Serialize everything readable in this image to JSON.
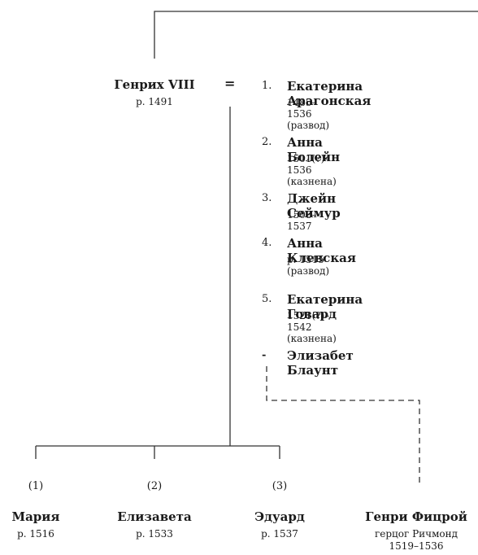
{
  "king": {
    "name": "Генрих VIII",
    "born": "р. 1491",
    "marriage_sign": "="
  },
  "wives": [
    {
      "marker": "1.",
      "name": "Екатерина Арагонская",
      "dates": "1485–1536",
      "note": "(развод)"
    },
    {
      "marker": "2.",
      "name": "Анна Болейн",
      "dates": "1501(?)–1536",
      "note": "(казнена)"
    },
    {
      "marker": "3.",
      "name": "Джейн Сеймур",
      "dates": "1508–1537",
      "note": ""
    },
    {
      "marker": "4.",
      "name": "Анна Клевская",
      "dates": "р. 1515",
      "note": "(развод)"
    },
    {
      "marker": "5.",
      "name": "Екатерина Говард",
      "dates": "1521(?)–1542",
      "note": "(казнена)"
    }
  ],
  "mistress": {
    "marker": "-",
    "name": "Элизабет Блаунт"
  },
  "children": [
    {
      "mother_ref": "(1)",
      "name": "Мария",
      "born": "р. 1516"
    },
    {
      "mother_ref": "(2)",
      "name": "Елизавета",
      "born": "р. 1533"
    },
    {
      "mother_ref": "(3)",
      "name": "Эдуард",
      "born": "р. 1537"
    }
  ],
  "illegitimate_son": {
    "name": "Генри Фицрой",
    "title": "герцог Ричмонд",
    "dates": "1519–1536"
  },
  "colors": {
    "ink": "#1a1a1a",
    "line": "#333333"
  }
}
